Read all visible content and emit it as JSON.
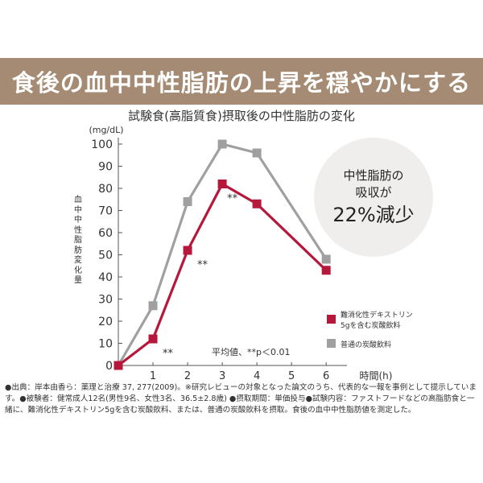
{
  "banner": {
    "title": "食後の血中中性脂肪の上昇を穏やかにする"
  },
  "callout": {
    "line1": "中性脂肪の",
    "line2": "吸収が",
    "line3": "22%減少"
  },
  "footnote": "●出典：岸本由香ら：薬理と治療 37, 277(2009)。※研究レビューの対象となった論文のうち、代表的な一報を事例として提示しています。●被験者：健常成人12名(男性9名、女性3名、36.5±2.8歳) ●摂取期間：単価投与●試験内容：ファストフードなどの高脂肪食と一緒に、難消化性デキストリン5gを含む炭酸飲料、または、普通の炭酸飲料を摂取。食後の血中中性脂肪値を測定した。",
  "chart_data": {
    "type": "line",
    "title": "試験食(高脂質食)摂取後の中性脂肪の変化",
    "ylabel": "血中中性脂肪変化量",
    "yunit": "(mg/dL)",
    "xlabel": "時間(h)",
    "x": [
      0,
      1,
      2,
      3,
      4,
      5,
      6
    ],
    "xticks": [
      "1",
      "2",
      "3",
      "4",
      "5",
      "6"
    ],
    "yticks": [
      "0",
      "10",
      "20",
      "30",
      "40",
      "50",
      "60",
      "70",
      "80",
      "90",
      "100"
    ],
    "xlim": [
      0,
      6.6
    ],
    "ylim": [
      0,
      100
    ],
    "grid": false,
    "legend_position": "right",
    "series": [
      {
        "name": "難消化性デキストリン5gを含む炭酸飲料",
        "legend_lines": [
          "難消化性デキストリン",
          "5gを含む炭酸飲料"
        ],
        "color": "#b5183a",
        "x": [
          0,
          1,
          2,
          3,
          4,
          6
        ],
        "values": [
          0,
          12,
          52,
          82,
          73,
          43
        ]
      },
      {
        "name": "普通の炭酸飲料",
        "legend_lines": [
          "普通の炭酸飲料"
        ],
        "color": "#a0a0a0",
        "x": [
          0,
          1,
          2,
          3,
          4,
          6
        ],
        "values": [
          0,
          27,
          74,
          100,
          96,
          48
        ]
      }
    ],
    "annotations": [
      {
        "text": "**",
        "x": 1,
        "y": 12
      },
      {
        "text": "**",
        "x": 2,
        "y": 52
      },
      {
        "text": "**",
        "x": 3,
        "y": 82
      }
    ],
    "note": "平均値、**p＜0.01"
  }
}
